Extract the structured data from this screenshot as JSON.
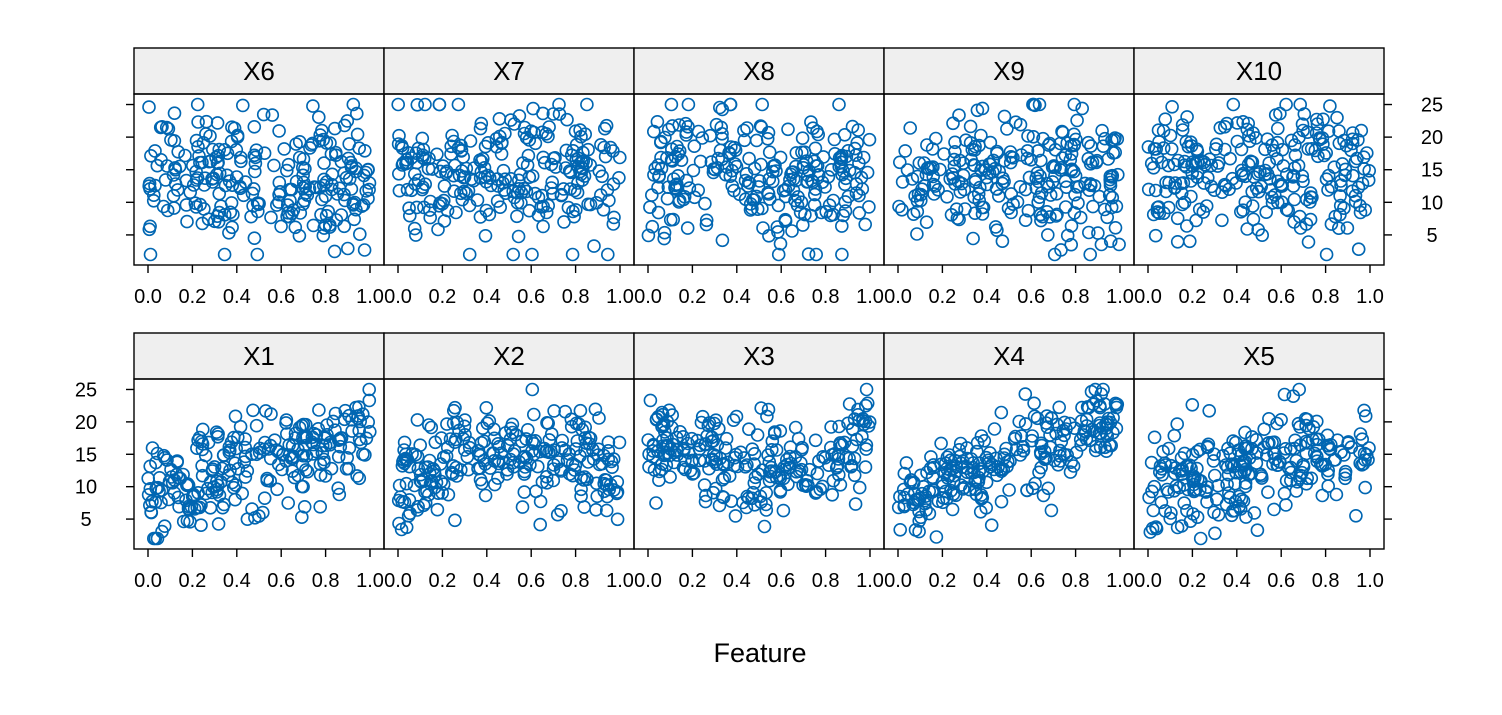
{
  "chart_data": {
    "type": "scatter",
    "xlabel": "Feature",
    "ylabel": "",
    "xlim": [
      0,
      1
    ],
    "ylim": [
      1,
      26
    ],
    "x_ticks": [
      "0.0",
      "0.2",
      "0.4",
      "0.6",
      "0.8",
      "1.0"
    ],
    "y_ticks": [
      "5",
      "10",
      "15",
      "20",
      "25"
    ],
    "point_color": "#0066b2",
    "strip_color": "#efefef",
    "panels": [
      {
        "name": "X1",
        "relation": "positive"
      },
      {
        "name": "X2",
        "relation": "hump"
      },
      {
        "name": "X3",
        "relation": "dip"
      },
      {
        "name": "X4",
        "relation": "strong-positive"
      },
      {
        "name": "X5",
        "relation": "weak-positive"
      },
      {
        "name": "X6",
        "relation": "none"
      },
      {
        "name": "X7",
        "relation": "none"
      },
      {
        "name": "X8",
        "relation": "none"
      },
      {
        "name": "X9",
        "relation": "none"
      },
      {
        "name": "X10",
        "relation": "none"
      }
    ],
    "points_per_panel": 250
  }
}
